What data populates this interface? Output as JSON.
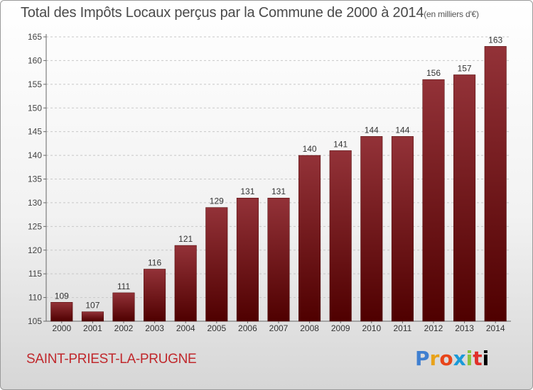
{
  "chart_data": {
    "type": "bar",
    "title": "Total des Impôts Locaux perçus par la Commune de 2000 à 2014",
    "title_unit": "(en milliers d'€)",
    "categories": [
      "2000",
      "2001",
      "2002",
      "2003",
      "2004",
      "2005",
      "2006",
      "2007",
      "2008",
      "2009",
      "2010",
      "2011",
      "2012",
      "2013",
      "2014"
    ],
    "values": [
      109,
      107,
      111,
      116,
      121,
      129,
      131,
      131,
      140,
      141,
      144,
      144,
      156,
      157,
      163
    ],
    "ylim": [
      105,
      165
    ],
    "yticks": [
      105,
      110,
      115,
      120,
      125,
      130,
      135,
      140,
      145,
      150,
      155,
      160,
      165
    ],
    "xlabel": "",
    "ylabel": "",
    "grid": "horizontal dashed",
    "bar_color": "#7a1a1f"
  },
  "footer": {
    "commune": "SAINT-PRIEST-LA-PRUGNE",
    "logo_letters": [
      "P",
      "r",
      "o",
      "x",
      "i",
      "t",
      "i"
    ]
  }
}
